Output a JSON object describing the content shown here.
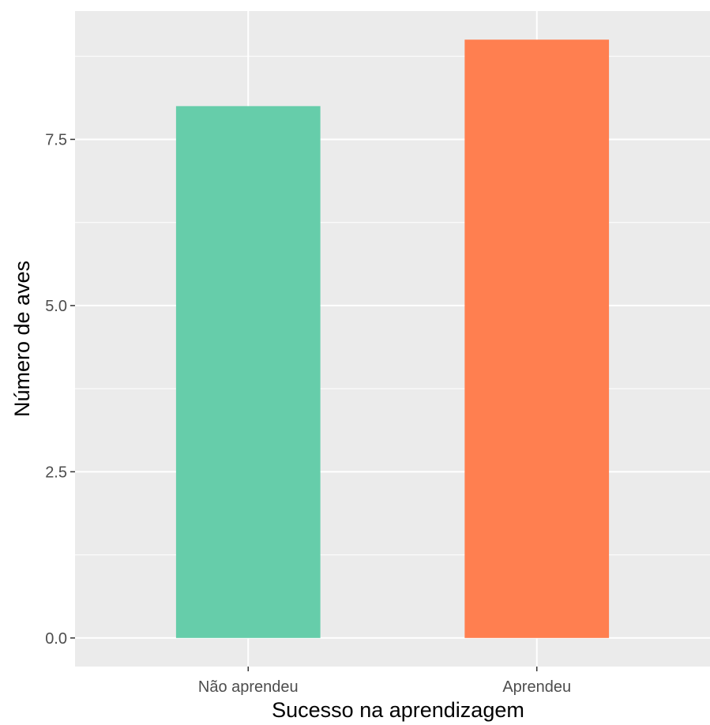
{
  "chart_data": {
    "type": "bar",
    "title": "",
    "xlabel": "Sucesso na aprendizagem",
    "ylabel": "Número de aves",
    "categories": [
      "Não aprendeu",
      "Aprendeu"
    ],
    "values": [
      8,
      9
    ],
    "colors": [
      "#66cdaa",
      "#ff7f50"
    ],
    "ylim": [
      -0.43,
      9.43
    ],
    "yticks": [
      0.0,
      2.5,
      5.0,
      7.5
    ],
    "ytick_labels": [
      "0.0",
      "2.5",
      "5.0",
      "7.5"
    ],
    "grid": true,
    "legend": "none",
    "panel_background": "#ebebeb",
    "grid_color": "#ffffff"
  }
}
